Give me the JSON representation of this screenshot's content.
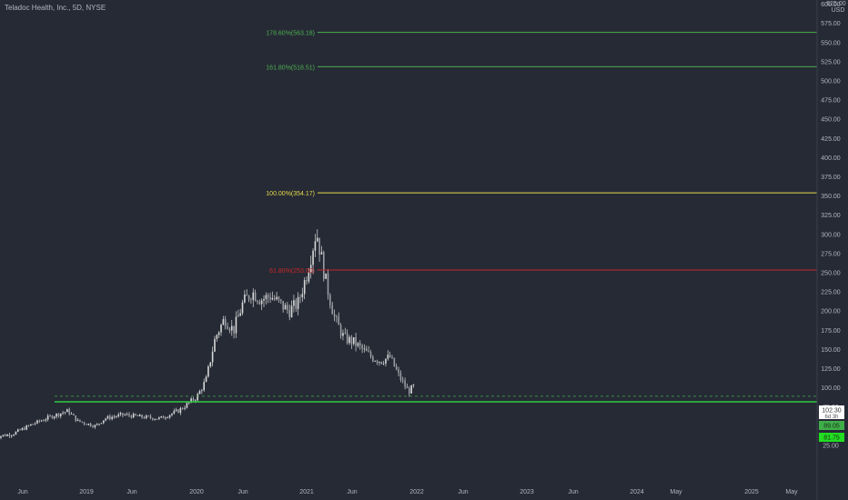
{
  "symbol_title": "Teladoc Health, Inc., 5D, NYSE",
  "chart_data": {
    "type": "candlestick",
    "title": "Teladoc Health, Inc., 5D, NYSE",
    "y_axis": {
      "currency": "USD",
      "ticks": [
        "600.00",
        "575.00",
        "550.00",
        "525.00",
        "500.00",
        "475.00",
        "450.00",
        "425.00",
        "400.00",
        "375.00",
        "350.00",
        "325.00",
        "300.00",
        "275.00",
        "250.00",
        "225.00",
        "200.00",
        "175.00",
        "150.00",
        "125.00",
        "100.00",
        "75.00",
        "50.00",
        "25.00"
      ],
      "top_label": "625.00",
      "range": [
        0,
        640
      ]
    },
    "x_axis": {
      "ticks": [
        "Jun",
        "2019",
        "Jun",
        "2020",
        "Jun",
        "2021",
        "Jun",
        "2022",
        "Jun",
        "2023",
        "Jun",
        "2024",
        "May",
        "2025",
        "May"
      ],
      "range": [
        "2018-03",
        "2025-08"
      ]
    },
    "price_points": [
      [
        "2018-03",
        36
      ],
      [
        "2018-05",
        40
      ],
      [
        "2018-07",
        52
      ],
      [
        "2018-09",
        62
      ],
      [
        "2018-11",
        70
      ],
      [
        "2018-12",
        57
      ],
      [
        "2019-02",
        50
      ],
      [
        "2019-03",
        60
      ],
      [
        "2019-05",
        65
      ],
      [
        "2019-07",
        62
      ],
      [
        "2019-09",
        60
      ],
      [
        "2019-11",
        70
      ],
      [
        "2020-01",
        88
      ],
      [
        "2020-02",
        110
      ],
      [
        "2020-03",
        165
      ],
      [
        "2020-04",
        190
      ],
      [
        "2020-05",
        175
      ],
      [
        "2020-06",
        210
      ],
      [
        "2020-07",
        225
      ],
      [
        "2020-08",
        215
      ],
      [
        "2020-09",
        220
      ],
      [
        "2020-10",
        210
      ],
      [
        "2020-11",
        200
      ],
      [
        "2020-12",
        210
      ],
      [
        "2021-01",
        250
      ],
      [
        "2021-02",
        305
      ],
      [
        "2021-03",
        240
      ],
      [
        "2021-04",
        190
      ],
      [
        "2021-05",
        165
      ],
      [
        "2021-06",
        160
      ],
      [
        "2021-07",
        150
      ],
      [
        "2021-08",
        140
      ],
      [
        "2021-09",
        135
      ],
      [
        "2021-10",
        140
      ],
      [
        "2021-11",
        115
      ],
      [
        "2021-12",
        95
      ],
      [
        "2021-12-20",
        102
      ]
    ],
    "fibonacci": [
      {
        "label": "178.60%(563.18)",
        "value": 563.18,
        "color": "#4caf50"
      },
      {
        "label": "161.80%(518.51)",
        "value": 518.51,
        "color": "#4caf50"
      },
      {
        "label": "100.00%(354.17)",
        "value": 354.17,
        "color": "#e6d94a"
      },
      {
        "label": "61.80%(253.60)",
        "value": 253.6,
        "color": "#c62828"
      }
    ],
    "support_line": {
      "value": 81.75,
      "color": "#2ecc40"
    },
    "dashed_line": {
      "value": 89.05,
      "color": "#3fae49"
    },
    "price_labels": [
      {
        "text": "102.30",
        "sub": "6d 3h",
        "value": 102.3,
        "bg": "#ffffff",
        "fg": "#333333"
      },
      {
        "text": "89.05",
        "value": 89.05,
        "bg": "#3fae49",
        "fg": "#1b2a1b"
      },
      {
        "text": "81.75",
        "value": 81.75,
        "bg": "#22dd22",
        "fg": "#1b2a1b"
      }
    ],
    "colors": {
      "background": "#262a35",
      "candle": "#d8d8d8",
      "axis_text": "#b2b5be",
      "grid": "none"
    }
  }
}
